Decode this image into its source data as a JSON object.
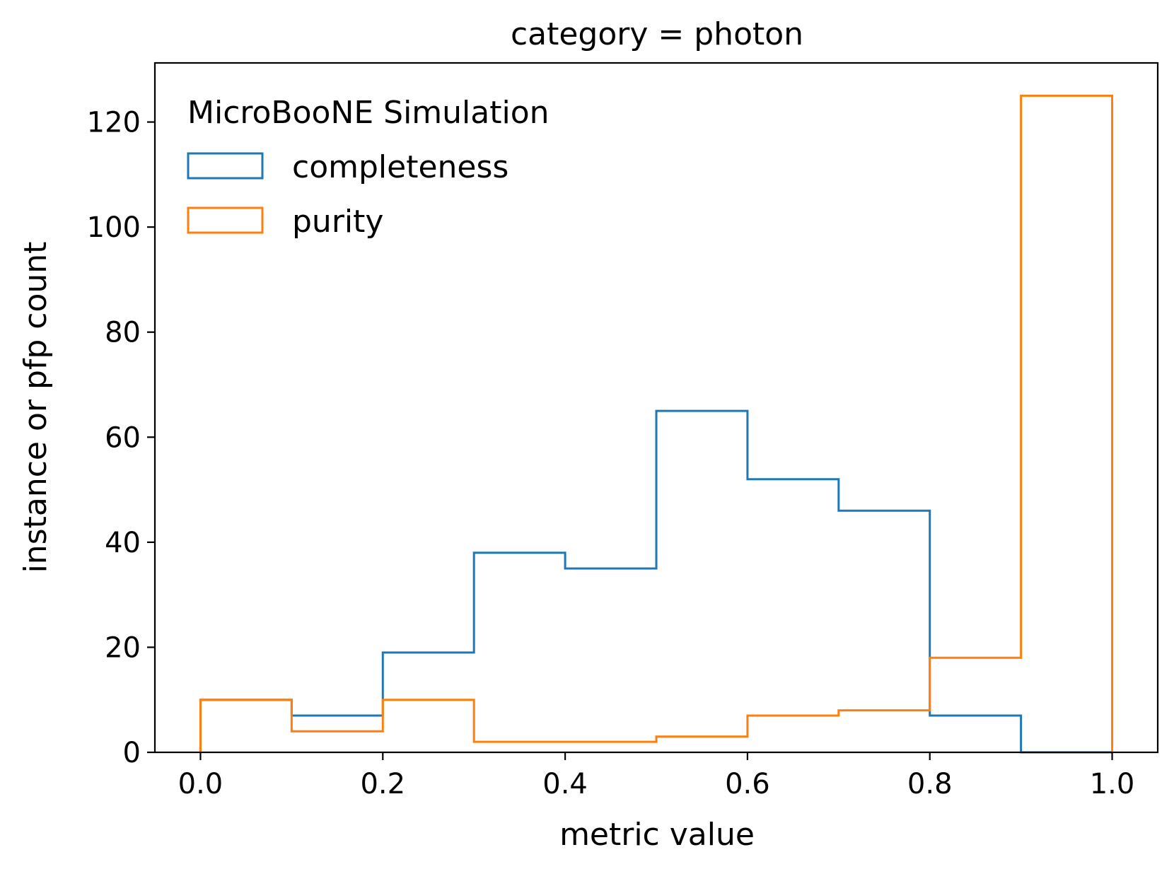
{
  "chart_data": {
    "type": "histogram-step",
    "title": "category = photon",
    "xlabel": "metric value",
    "ylabel": "instance or pfp count",
    "xlim": [
      -0.05,
      1.05
    ],
    "ylim": [
      0,
      131.25
    ],
    "xticks": [
      0.0,
      0.2,
      0.4,
      0.6,
      0.8,
      1.0
    ],
    "xtick_labels": [
      "0.0",
      "0.2",
      "0.4",
      "0.6",
      "0.8",
      "1.0"
    ],
    "yticks": [
      0,
      20,
      40,
      60,
      80,
      100,
      120
    ],
    "ytick_labels": [
      "0",
      "20",
      "40",
      "60",
      "80",
      "100",
      "120"
    ],
    "bin_edges": [
      0.0,
      0.1,
      0.2,
      0.3,
      0.4,
      0.5,
      0.6,
      0.7,
      0.8,
      0.9,
      1.0
    ],
    "legend_title": "MicroBooNE Simulation",
    "legend_position": "upper-left",
    "series": [
      {
        "name": "completeness",
        "color": "#1f77b4",
        "values": [
          10,
          7,
          19,
          38,
          35,
          65,
          52,
          46,
          7,
          0
        ]
      },
      {
        "name": "purity",
        "color": "#ff7f0e",
        "values": [
          10,
          4,
          10,
          2,
          2,
          3,
          7,
          8,
          18,
          125
        ]
      }
    ]
  }
}
